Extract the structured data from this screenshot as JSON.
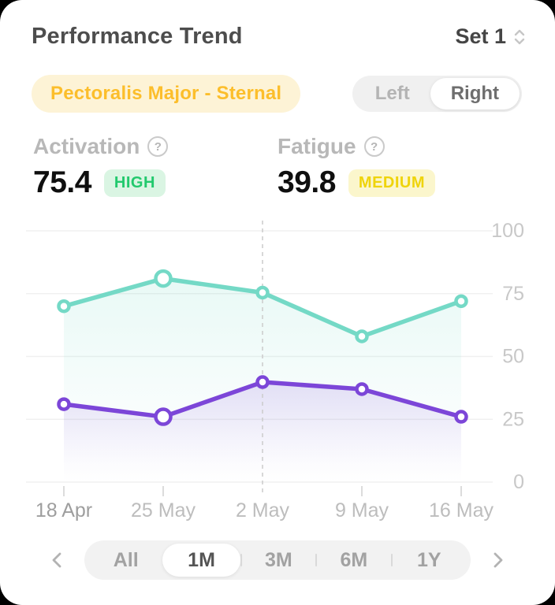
{
  "header": {
    "title": "Performance Trend",
    "set_selector": "Set 1"
  },
  "muscle_badge": "Pectoralis Major - Sternal",
  "side_toggle": {
    "options": [
      "Left",
      "Right"
    ],
    "selected": "Right"
  },
  "metrics": {
    "activation": {
      "label": "Activation",
      "value": "75.4",
      "level": "HIGH"
    },
    "fatigue": {
      "label": "Fatigue",
      "value": "39.8",
      "level": "MEDIUM"
    }
  },
  "chart_data": {
    "type": "line",
    "x": [
      "18 Apr",
      "25 May",
      "2 May",
      "9 May",
      "16 May"
    ],
    "series": [
      {
        "name": "Activation",
        "color": "#74d9c6",
        "values": [
          70,
          81,
          75.4,
          58,
          72
        ]
      },
      {
        "name": "Fatigue",
        "color": "#7c46d8",
        "values": [
          31,
          26,
          39.8,
          37,
          26
        ]
      }
    ],
    "ylim": [
      0,
      100
    ],
    "yticks": [
      0,
      25,
      50,
      75,
      100
    ],
    "grid": true,
    "legend": "none",
    "y_axis_side": "right",
    "selected_x": "2 May",
    "highlight_x": "25 May"
  },
  "range_selector": {
    "options": [
      "All",
      "1M",
      "3M",
      "6M",
      "1Y"
    ],
    "selected": "1M"
  },
  "colors": {
    "activation_line": "#74d9c6",
    "fatigue_line": "#7c46d8",
    "badge_text": "#fcbe2b",
    "badge_bg": "#fdf3d6",
    "high_text": "#22c96d",
    "high_bg": "#daf5e3",
    "medium_text": "#efd40b",
    "medium_bg": "#fbf6cc"
  }
}
